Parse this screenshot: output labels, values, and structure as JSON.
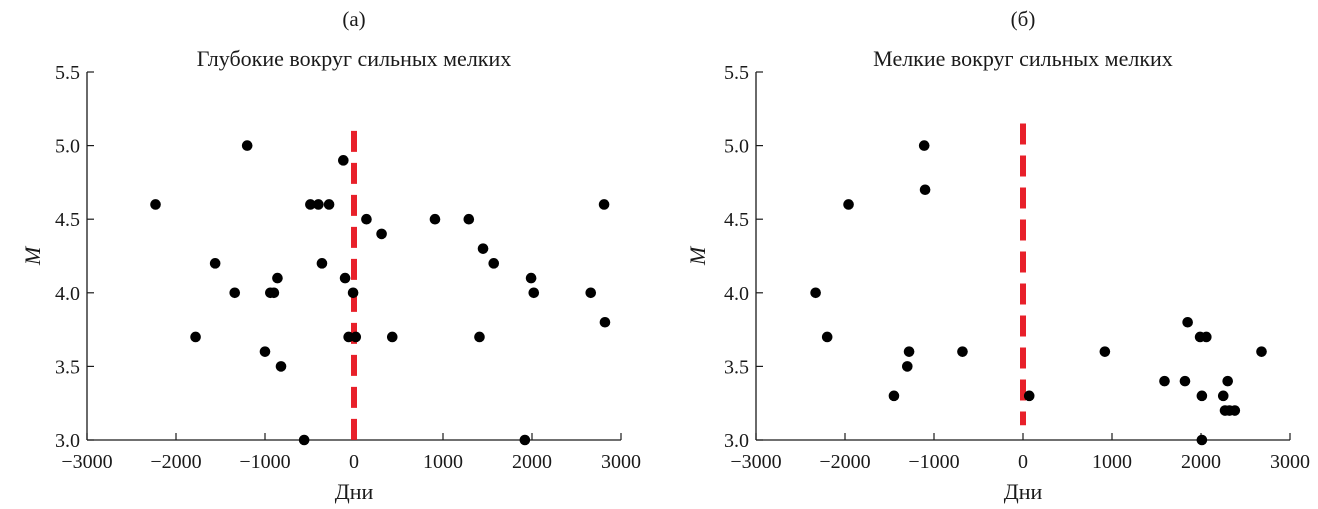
{
  "chart_data": [
    {
      "type": "scatter",
      "panel_label": "(а)",
      "title": "Глубокие вокруг сильных мелких",
      "xlabel": "Дни",
      "ylabel": "M",
      "xlim": [
        -3000,
        3000
      ],
      "ylim": [
        3.0,
        5.5
      ],
      "xticks": [
        -3000,
        -2000,
        -1000,
        0,
        1000,
        2000,
        3000
      ],
      "xtick_labels": [
        "−3000",
        "−2000",
        "−1000",
        "0",
        "1000",
        "2000",
        "3000"
      ],
      "yticks": [
        3.0,
        3.5,
        4.0,
        4.5,
        5.0,
        5.5
      ],
      "ytick_labels": [
        "3.0",
        "3.5",
        "4.0",
        "4.5",
        "5.0",
        "5.5"
      ],
      "reference_line": {
        "x": 0,
        "y_range": [
          3.0,
          5.1
        ],
        "style": "dashed",
        "color": "#e8202a"
      },
      "marker_color": "#000000",
      "points": [
        {
          "x": -2230,
          "y": 4.6
        },
        {
          "x": -1780,
          "y": 3.7
        },
        {
          "x": -1560,
          "y": 4.2
        },
        {
          "x": -1340,
          "y": 4.0
        },
        {
          "x": -1200,
          "y": 5.0
        },
        {
          "x": -1000,
          "y": 3.6
        },
        {
          "x": -940,
          "y": 4.0
        },
        {
          "x": -900,
          "y": 4.0
        },
        {
          "x": -860,
          "y": 4.1
        },
        {
          "x": -820,
          "y": 3.5
        },
        {
          "x": -560,
          "y": 3.0
        },
        {
          "x": -490,
          "y": 4.6
        },
        {
          "x": -400,
          "y": 4.6
        },
        {
          "x": -360,
          "y": 4.2
        },
        {
          "x": -280,
          "y": 4.6
        },
        {
          "x": -120,
          "y": 4.9
        },
        {
          "x": -100,
          "y": 4.1
        },
        {
          "x": -60,
          "y": 3.7
        },
        {
          "x": -10,
          "y": 4.0
        },
        {
          "x": 20,
          "y": 3.7
        },
        {
          "x": 140,
          "y": 4.5
        },
        {
          "x": 310,
          "y": 4.4
        },
        {
          "x": 430,
          "y": 3.7
        },
        {
          "x": 910,
          "y": 4.5
        },
        {
          "x": 1290,
          "y": 4.5
        },
        {
          "x": 1410,
          "y": 3.7
        },
        {
          "x": 1450,
          "y": 4.3
        },
        {
          "x": 1570,
          "y": 4.2
        },
        {
          "x": 1920,
          "y": 3.0
        },
        {
          "x": 1990,
          "y": 4.1
        },
        {
          "x": 2020,
          "y": 4.0
        },
        {
          "x": 2660,
          "y": 4.0
        },
        {
          "x": 2810,
          "y": 4.6
        },
        {
          "x": 2820,
          "y": 3.8
        }
      ]
    },
    {
      "type": "scatter",
      "panel_label": "(б)",
      "title": "Мелкие вокруг сильных мелких",
      "xlabel": "Дни",
      "ylabel": "M",
      "xlim": [
        -3000,
        3000
      ],
      "ylim": [
        3.0,
        5.5
      ],
      "xticks": [
        -3000,
        -2000,
        -1000,
        0,
        1000,
        2000,
        3000
      ],
      "xtick_labels": [
        "−3000",
        "−2000",
        "−1000",
        "0",
        "1000",
        "2000",
        "3000"
      ],
      "yticks": [
        3.0,
        3.5,
        4.0,
        4.5,
        5.0,
        5.5
      ],
      "ytick_labels": [
        "3.0",
        "3.5",
        "4.0",
        "4.5",
        "5.0",
        "5.5"
      ],
      "reference_line": {
        "x": 0,
        "y_range": [
          3.1,
          5.15
        ],
        "style": "dashed",
        "color": "#e8202a"
      },
      "marker_color": "#000000",
      "points": [
        {
          "x": -2330,
          "y": 4.0
        },
        {
          "x": -2200,
          "y": 3.7
        },
        {
          "x": -1960,
          "y": 4.6
        },
        {
          "x": -1450,
          "y": 3.3
        },
        {
          "x": -1300,
          "y": 3.5
        },
        {
          "x": -1280,
          "y": 3.6
        },
        {
          "x": -1110,
          "y": 5.0
        },
        {
          "x": -1100,
          "y": 4.7
        },
        {
          "x": -680,
          "y": 3.6
        },
        {
          "x": 70,
          "y": 3.3
        },
        {
          "x": 920,
          "y": 3.6
        },
        {
          "x": 1590,
          "y": 3.4
        },
        {
          "x": 1820,
          "y": 3.4
        },
        {
          "x": 1850,
          "y": 3.8
        },
        {
          "x": 1990,
          "y": 3.7
        },
        {
          "x": 2010,
          "y": 3.3
        },
        {
          "x": 2010,
          "y": 3.0
        },
        {
          "x": 2060,
          "y": 3.7
        },
        {
          "x": 2250,
          "y": 3.3
        },
        {
          "x": 2270,
          "y": 3.2
        },
        {
          "x": 2300,
          "y": 3.4
        },
        {
          "x": 2320,
          "y": 3.2
        },
        {
          "x": 2380,
          "y": 3.2
        },
        {
          "x": 2680,
          "y": 3.6
        }
      ]
    }
  ]
}
